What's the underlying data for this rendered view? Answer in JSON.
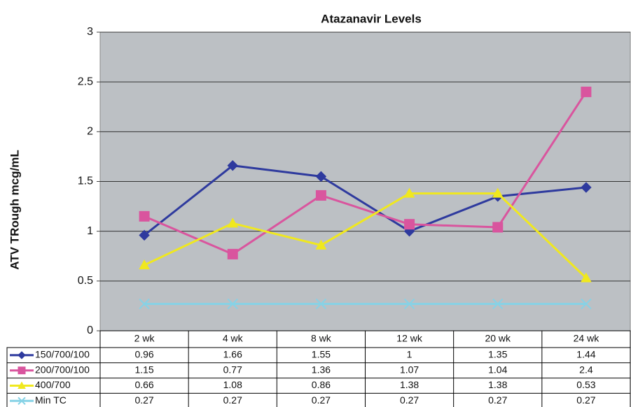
{
  "chart_data": {
    "type": "line",
    "title": "Atazanavir Levels",
    "y_label": "ATV TRough mcg/mL",
    "categories": [
      "2 wk",
      "4 wk",
      "8 wk",
      "12 wk",
      "20 wk",
      "24 wk"
    ],
    "series": [
      {
        "name": "150/700/100",
        "color": "#2e3a9e",
        "marker": "diamond",
        "values": [
          0.96,
          1.66,
          1.55,
          1,
          1.35,
          1.44
        ]
      },
      {
        "name": "200/700/100",
        "color": "#d9559e",
        "marker": "square",
        "values": [
          1.15,
          0.77,
          1.36,
          1.07,
          1.04,
          2.4
        ]
      },
      {
        "name": "400/700",
        "color": "#f0e81e",
        "marker": "triangle",
        "values": [
          0.66,
          1.08,
          0.86,
          1.38,
          1.38,
          0.53
        ]
      },
      {
        "name": "Min TC",
        "color": "#86d2e6",
        "marker": "x",
        "values": [
          0.27,
          0.27,
          0.27,
          0.27,
          0.27,
          0.27
        ]
      }
    ],
    "ylim": [
      0,
      3
    ],
    "yticks": [
      0,
      0.5,
      1,
      1.5,
      2,
      2.5,
      3
    ],
    "grid": true,
    "data_table": true
  }
}
